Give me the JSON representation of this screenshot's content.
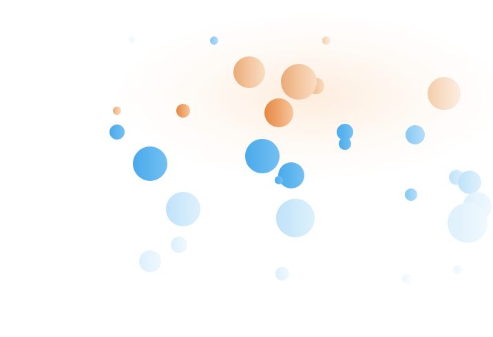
{
  "scene": {
    "description_colors": {
      "orange": "#e58840",
      "blue": "#4aa9ea",
      "background": "#ffffff"
    }
  }
}
